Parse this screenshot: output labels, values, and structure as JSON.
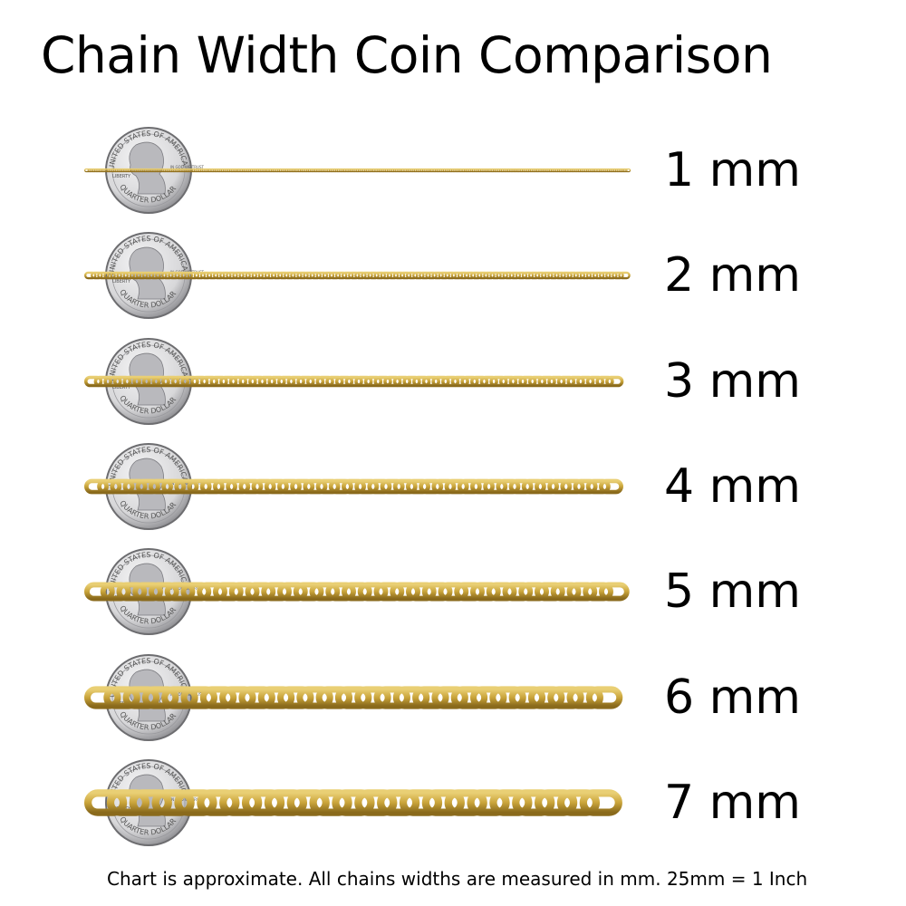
{
  "title": "Chain Width Coin Comparison",
  "rows": [
    {
      "width_mm": 1,
      "label": "1 mm"
    },
    {
      "width_mm": 2,
      "label": "2 mm"
    },
    {
      "width_mm": 3,
      "label": "3 mm"
    },
    {
      "width_mm": 4,
      "label": "4 mm"
    },
    {
      "width_mm": 5,
      "label": "5 mm"
    },
    {
      "width_mm": 6,
      "label": "6 mm"
    },
    {
      "width_mm": 7,
      "label": "7 mm"
    }
  ],
  "coin": {
    "name": "quarter",
    "lettering": [
      "UNITED STATES OF AMERICA",
      "LIBERTY",
      "IN GOD WE TRUST",
      "QUARTER DOLLAR"
    ]
  },
  "colors": {
    "gold": "#C9A43A",
    "gold_dark": "#8A6A1C",
    "gold_light": "#E9CF74",
    "coin": "#D8D8DA"
  },
  "footer": "Chart is approximate. All chains widths are measured in mm.  25mm = 1 Inch"
}
